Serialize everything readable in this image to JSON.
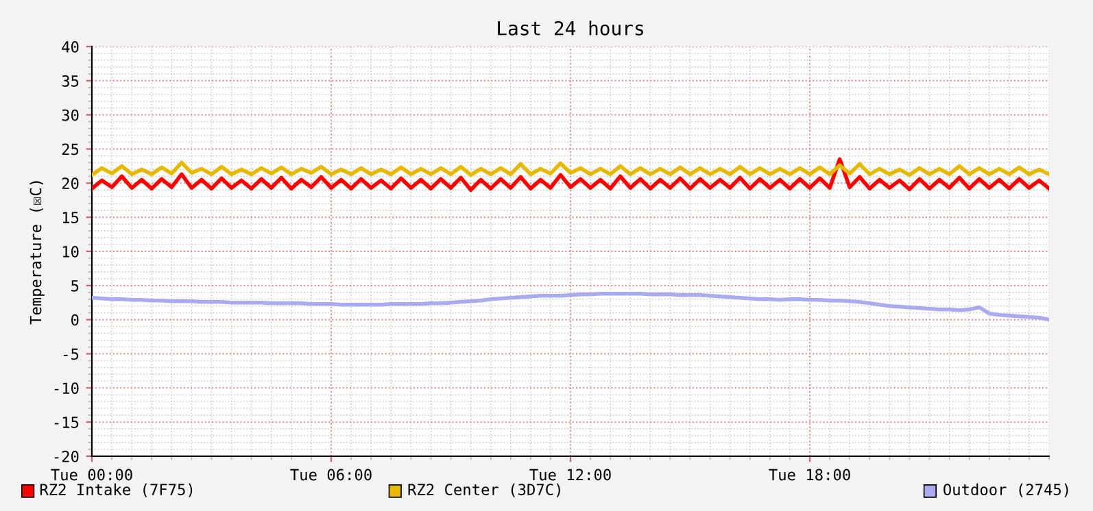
{
  "chart_data": {
    "type": "line",
    "title": "Last 24 hours",
    "ylabel": "Temperature (☒C)",
    "categories": [
      "Tue 00:00",
      null,
      null,
      null,
      null,
      null,
      null,
      null,
      null,
      null,
      null,
      null,
      null,
      null,
      null,
      null,
      null,
      null,
      null,
      null,
      null,
      null,
      null,
      null,
      "Tue 06:00",
      null,
      null,
      null,
      null,
      null,
      null,
      null,
      null,
      null,
      null,
      null,
      null,
      null,
      null,
      null,
      null,
      null,
      null,
      null,
      null,
      null,
      null,
      null,
      "Tue 12:00",
      null,
      null,
      null,
      null,
      null,
      null,
      null,
      null,
      null,
      null,
      null,
      null,
      null,
      null,
      null,
      null,
      null,
      null,
      null,
      null,
      null,
      null,
      null,
      "Tue 18:00",
      null,
      null,
      null,
      null,
      null,
      null,
      null,
      null,
      null,
      null,
      null,
      null,
      null,
      null,
      null,
      null,
      null,
      null,
      null,
      null,
      null,
      null,
      null,
      null
    ],
    "series": [
      {
        "name": "RZ2 Intake (7F75)",
        "color": "#ff0000",
        "values": [
          19.2,
          20.4,
          19.4,
          21.0,
          19.3,
          20.5,
          19.2,
          20.6,
          19.4,
          21.3,
          19.3,
          20.5,
          19.2,
          20.7,
          19.3,
          20.4,
          19.2,
          20.6,
          19.3,
          20.8,
          19.2,
          20.5,
          19.4,
          20.9,
          19.3,
          20.5,
          19.2,
          20.6,
          19.3,
          20.4,
          19.2,
          20.7,
          19.3,
          20.5,
          19.2,
          20.6,
          19.3,
          20.8,
          19.0,
          20.5,
          19.2,
          20.6,
          19.3,
          20.9,
          19.2,
          20.5,
          19.3,
          21.2,
          19.4,
          20.6,
          19.3,
          20.5,
          19.2,
          21.0,
          19.3,
          20.6,
          19.2,
          20.5,
          19.3,
          20.7,
          19.2,
          20.6,
          19.3,
          20.5,
          19.3,
          20.8,
          19.2,
          20.6,
          19.3,
          20.5,
          19.2,
          20.6,
          19.3,
          20.7,
          19.3,
          23.5,
          19.4,
          20.9,
          19.2,
          20.5,
          19.3,
          20.4,
          19.1,
          20.6,
          19.2,
          20.5,
          19.3,
          20.8,
          19.2,
          20.6,
          19.3,
          20.5,
          19.2,
          20.6,
          19.3,
          20.4,
          19.2
        ]
      },
      {
        "name": "RZ2 Center (3D7C)",
        "color": "#e6b800",
        "values": [
          21.2,
          22.2,
          21.4,
          22.5,
          21.3,
          22.0,
          21.3,
          22.3,
          21.4,
          23.0,
          21.5,
          22.1,
          21.3,
          22.4,
          21.3,
          22.0,
          21.3,
          22.2,
          21.4,
          22.3,
          21.3,
          22.1,
          21.5,
          22.4,
          21.3,
          22.0,
          21.3,
          22.2,
          21.3,
          22.0,
          21.3,
          22.3,
          21.3,
          22.1,
          21.3,
          22.2,
          21.3,
          22.4,
          21.2,
          22.1,
          21.3,
          22.2,
          21.3,
          22.8,
          21.3,
          22.1,
          21.4,
          22.9,
          21.5,
          22.2,
          21.3,
          22.1,
          21.3,
          22.5,
          21.3,
          22.2,
          21.3,
          22.1,
          21.3,
          22.3,
          21.3,
          22.2,
          21.3,
          22.1,
          21.3,
          22.4,
          21.3,
          22.2,
          21.3,
          22.1,
          21.3,
          22.2,
          21.3,
          22.3,
          21.3,
          22.6,
          21.4,
          22.8,
          21.3,
          22.1,
          21.3,
          22.0,
          21.2,
          22.2,
          21.3,
          22.1,
          21.3,
          22.5,
          21.3,
          22.2,
          21.3,
          22.1,
          21.3,
          22.3,
          21.3,
          22.0,
          21.3
        ]
      },
      {
        "name": "Outdoor (2745)",
        "color": "#aaaaee",
        "values": [
          3.2,
          3.1,
          3.0,
          3.0,
          2.9,
          2.9,
          2.8,
          2.8,
          2.7,
          2.7,
          2.7,
          2.6,
          2.6,
          2.6,
          2.5,
          2.5,
          2.5,
          2.5,
          2.4,
          2.4,
          2.4,
          2.4,
          2.3,
          2.3,
          2.3,
          2.2,
          2.2,
          2.2,
          2.2,
          2.2,
          2.3,
          2.3,
          2.3,
          2.3,
          2.4,
          2.4,
          2.5,
          2.6,
          2.7,
          2.8,
          3.0,
          3.1,
          3.2,
          3.3,
          3.4,
          3.5,
          3.5,
          3.5,
          3.6,
          3.7,
          3.7,
          3.8,
          3.8,
          3.8,
          3.8,
          3.8,
          3.7,
          3.7,
          3.7,
          3.6,
          3.6,
          3.6,
          3.5,
          3.4,
          3.3,
          3.2,
          3.1,
          3.0,
          3.0,
          2.9,
          3.0,
          3.0,
          2.9,
          2.9,
          2.8,
          2.8,
          2.7,
          2.6,
          2.4,
          2.2,
          2.0,
          1.9,
          1.8,
          1.7,
          1.6,
          1.5,
          1.5,
          1.4,
          1.5,
          1.8,
          0.9,
          0.7,
          0.6,
          0.5,
          0.4,
          0.3,
          0.0
        ]
      }
    ],
    "ylim": [
      -20,
      40
    ],
    "yticks": [
      -20,
      -15,
      -10,
      -5,
      0,
      5,
      10,
      15,
      20,
      25,
      30,
      35,
      40
    ],
    "grid": true,
    "legend": "bottom",
    "marker": "none",
    "line_style": "solid"
  }
}
